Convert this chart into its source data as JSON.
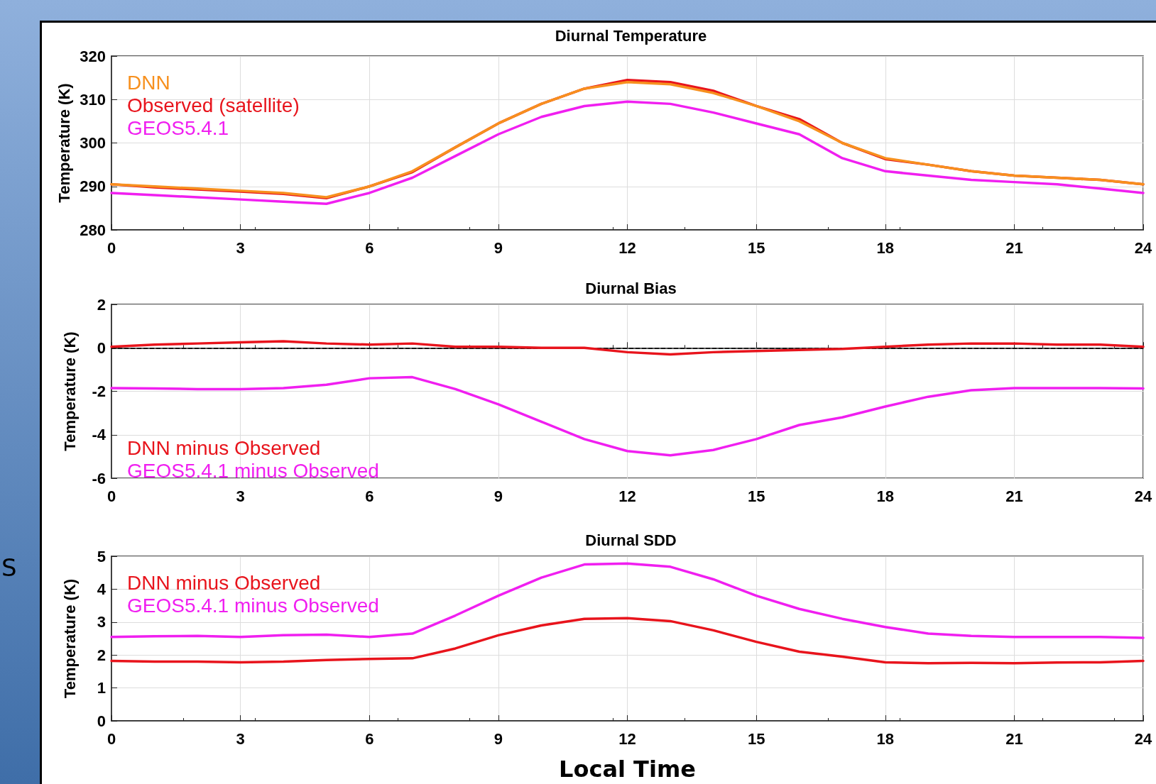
{
  "chart_data": [
    {
      "type": "line",
      "title": "Diurnal Temperature",
      "ylabel": "Temperature (K)",
      "x": [
        0,
        1,
        2,
        3,
        4,
        5,
        6,
        7,
        8,
        9,
        10,
        11,
        12,
        13,
        14,
        15,
        16,
        17,
        18,
        19,
        20,
        21,
        22,
        23,
        24
      ],
      "xlim": [
        0,
        24
      ],
      "xticks": [
        0,
        3,
        6,
        9,
        12,
        15,
        18,
        21,
        24
      ],
      "ylim": [
        280,
        320
      ],
      "yticks": [
        280,
        290,
        300,
        310,
        320
      ],
      "grid": true,
      "legend": "top left",
      "marker": "none",
      "line_style": "solid",
      "series": [
        {
          "name": "DNN",
          "color": "#f7901e",
          "values": [
            290.5,
            290,
            289.5,
            289,
            288.5,
            287.5,
            290,
            293.5,
            299,
            304.5,
            309,
            312.5,
            314,
            313.5,
            311.5,
            308.5,
            305,
            300,
            296.5,
            295,
            293.5,
            292.5,
            292,
            291.5,
            290.5
          ]
        },
        {
          "name": "Observed (satellite)",
          "color": "#e8141c",
          "values": [
            290.5,
            289.8,
            289.3,
            288.8,
            288.3,
            287.3,
            290,
            293.3,
            299,
            304.5,
            309,
            312.5,
            314.5,
            314,
            312,
            308.5,
            305.5,
            300,
            296.3,
            295,
            293.5,
            292.5,
            292,
            291.5,
            290.5
          ]
        },
        {
          "name": "GEOS5.4.1",
          "color": "#f01ff0",
          "values": [
            288.5,
            288,
            287.5,
            287,
            286.5,
            286,
            288.5,
            292,
            297,
            302,
            306,
            308.5,
            309.5,
            309,
            307,
            304.5,
            302,
            296.5,
            293.5,
            292.5,
            291.5,
            291,
            290.5,
            289.5,
            288.5
          ]
        }
      ]
    },
    {
      "type": "line",
      "title": "Diurnal Bias",
      "ylabel": "Temperature (K)",
      "x": [
        0,
        1,
        2,
        3,
        4,
        5,
        6,
        7,
        8,
        9,
        10,
        11,
        12,
        13,
        14,
        15,
        16,
        17,
        18,
        19,
        20,
        21,
        22,
        23,
        24
      ],
      "xlim": [
        0,
        24
      ],
      "xticks": [
        0,
        3,
        6,
        9,
        12,
        15,
        18,
        21,
        24
      ],
      "ylim": [
        -6,
        2
      ],
      "yticks": [
        -6,
        -4,
        -2,
        0,
        2
      ],
      "grid": true,
      "legend": "bottom left",
      "marker": "none",
      "line_style": "solid",
      "ref_lines": [
        {
          "axis": "y",
          "value": 0,
          "color": "#000000",
          "line_style": "dashed"
        }
      ],
      "series": [
        {
          "name": "DNN minus Observed",
          "color": "#e8141c",
          "values": [
            0.05,
            0.15,
            0.2,
            0.25,
            0.3,
            0.2,
            0.15,
            0.2,
            0.05,
            0.05,
            0,
            0,
            -0.2,
            -0.3,
            -0.2,
            -0.15,
            -0.1,
            -0.05,
            0.05,
            0.15,
            0.2,
            0.2,
            0.15,
            0.15,
            0.05
          ]
        },
        {
          "name": "GEOS5.4.1 minus Observed",
          "color": "#f01ff0",
          "values": [
            -1.85,
            -1.87,
            -1.9,
            -1.9,
            -1.85,
            -1.7,
            -1.4,
            -1.35,
            -1.9,
            -2.6,
            -3.4,
            -4.2,
            -4.75,
            -4.95,
            -4.7,
            -4.2,
            -3.55,
            -3.2,
            -2.7,
            -2.25,
            -1.95,
            -1.85,
            -1.85,
            -1.85,
            -1.87
          ]
        }
      ]
    },
    {
      "type": "line",
      "title": "Diurnal SDD",
      "ylabel": "Temperature (K)",
      "xlabel": "Local Time",
      "x": [
        0,
        1,
        2,
        3,
        4,
        5,
        6,
        7,
        8,
        9,
        10,
        11,
        12,
        13,
        14,
        15,
        16,
        17,
        18,
        19,
        20,
        21,
        22,
        23,
        24
      ],
      "xlim": [
        0,
        24
      ],
      "xticks": [
        0,
        3,
        6,
        9,
        12,
        15,
        18,
        21,
        24
      ],
      "ylim": [
        0,
        5
      ],
      "yticks": [
        0,
        1,
        2,
        3,
        4,
        5
      ],
      "grid": true,
      "legend": "top left",
      "marker": "none",
      "line_style": "solid",
      "annotations": [
        "S"
      ],
      "series": [
        {
          "name": "DNN minus Observed",
          "color": "#e8141c",
          "values": [
            1.82,
            1.8,
            1.8,
            1.78,
            1.8,
            1.85,
            1.88,
            1.9,
            2.2,
            2.6,
            2.9,
            3.1,
            3.12,
            3.03,
            2.75,
            2.4,
            2.1,
            1.95,
            1.78,
            1.75,
            1.76,
            1.75,
            1.77,
            1.78,
            1.82
          ]
        },
        {
          "name": "GEOS5.4.1 minus Observed",
          "color": "#f01ff0",
          "values": [
            2.55,
            2.57,
            2.58,
            2.55,
            2.6,
            2.62,
            2.55,
            2.65,
            3.2,
            3.8,
            4.35,
            4.75,
            4.78,
            4.68,
            4.3,
            3.8,
            3.4,
            3.1,
            2.85,
            2.65,
            2.58,
            2.55,
            2.55,
            2.55,
            2.52
          ]
        }
      ]
    }
  ]
}
